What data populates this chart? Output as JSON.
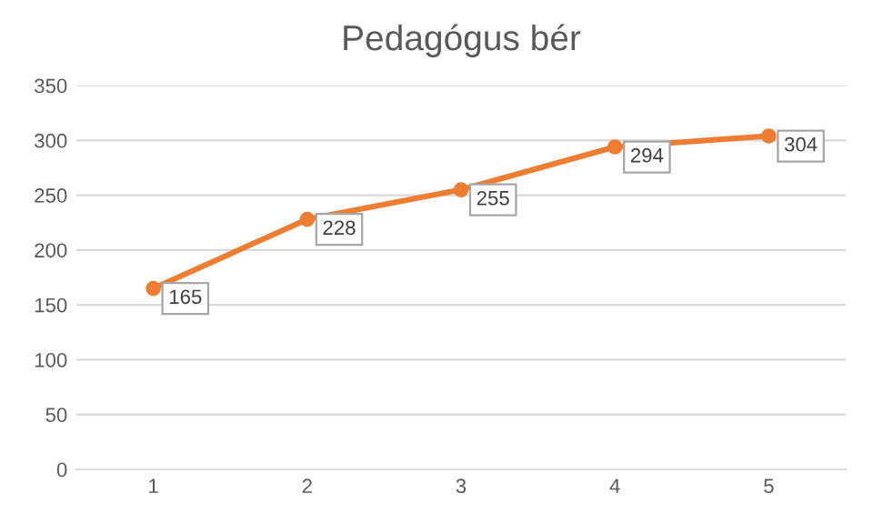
{
  "chart_data": {
    "type": "line",
    "title": "Pedagógus bér",
    "categories": [
      "1",
      "2",
      "3",
      "4",
      "5"
    ],
    "series": [
      {
        "color": "#ed7d31",
        "values": [
          165,
          228,
          255,
          294,
          304
        ]
      }
    ],
    "ylim": [
      0,
      350
    ],
    "yticks": [
      0,
      50,
      100,
      150,
      200,
      250,
      300,
      350
    ],
    "grid": "y",
    "marker": "circle",
    "line_style": "solid",
    "data_labels": true
  }
}
